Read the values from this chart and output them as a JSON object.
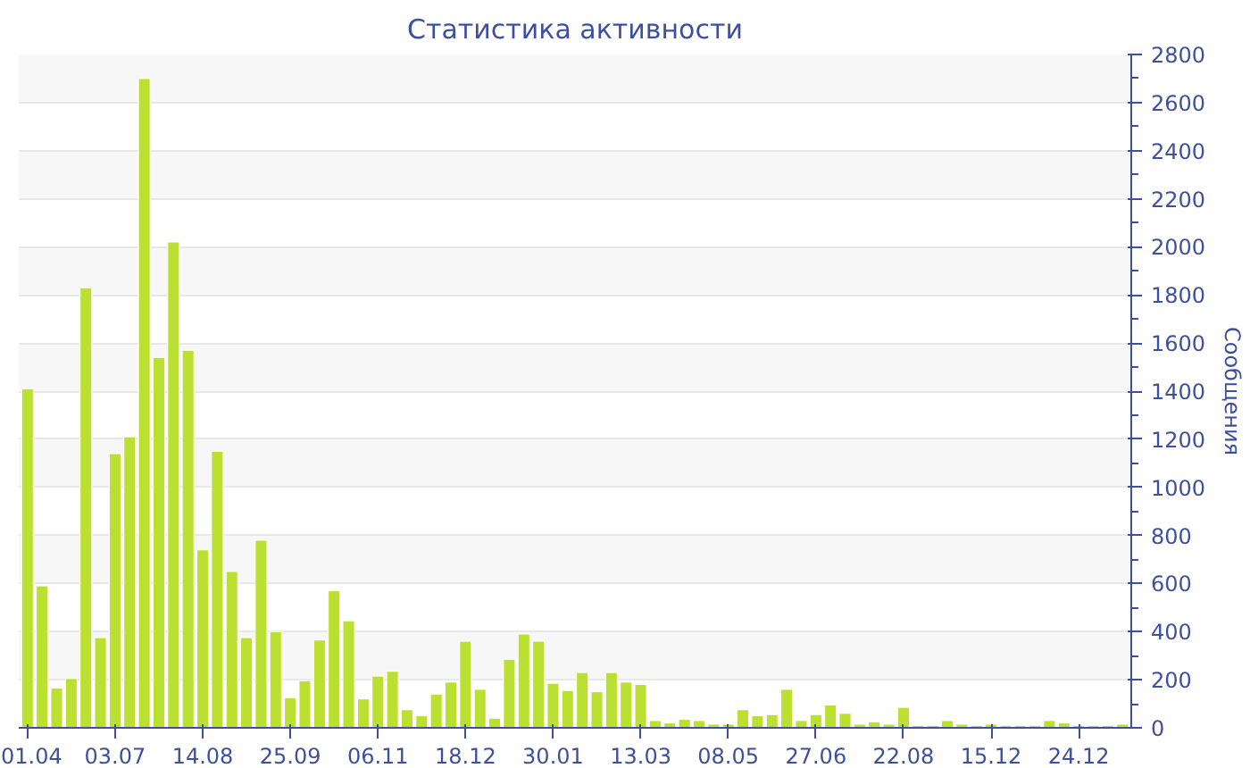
{
  "chart_data": {
    "type": "bar",
    "title": "Статистика активности",
    "ylabel": "Сообщения",
    "categories": [
      "01.04",
      null,
      null,
      null,
      null,
      null,
      "03.07",
      null,
      null,
      null,
      null,
      null,
      "14.08",
      null,
      null,
      null,
      null,
      null,
      "25.09",
      null,
      null,
      null,
      null,
      null,
      "06.11",
      null,
      null,
      null,
      null,
      null,
      "18.12",
      null,
      null,
      null,
      null,
      null,
      "30.01",
      null,
      null,
      null,
      null,
      null,
      "13.03",
      null,
      null,
      null,
      null,
      null,
      "08.05",
      null,
      null,
      null,
      null,
      null,
      "27.06",
      null,
      null,
      null,
      null,
      null,
      "22.08",
      null,
      null,
      null,
      null,
      null,
      "15.12",
      null,
      null,
      null,
      null,
      null,
      "24.12",
      null,
      null,
      null
    ],
    "values": [
      1410,
      590,
      165,
      205,
      1830,
      375,
      1140,
      1210,
      2700,
      1540,
      2020,
      1570,
      740,
      1150,
      650,
      375,
      780,
      400,
      125,
      195,
      365,
      570,
      445,
      120,
      215,
      235,
      75,
      50,
      140,
      190,
      360,
      160,
      40,
      285,
      390,
      360,
      185,
      155,
      230,
      150,
      230,
      190,
      180,
      30,
      20,
      35,
      30,
      15,
      15,
      75,
      50,
      55,
      160,
      30,
      55,
      95,
      60,
      15,
      25,
      15,
      85,
      10,
      10,
      30,
      15,
      10,
      15,
      10,
      10,
      10,
      30,
      20,
      10,
      10,
      10,
      15
    ],
    "color": "#bce032",
    "ylim": [
      0,
      2800
    ],
    "yticks": [
      0,
      200,
      400,
      600,
      800,
      1000,
      1200,
      1400,
      1600,
      1800,
      2000,
      2200,
      2400,
      2600,
      2800
    ],
    "grid": "y"
  }
}
